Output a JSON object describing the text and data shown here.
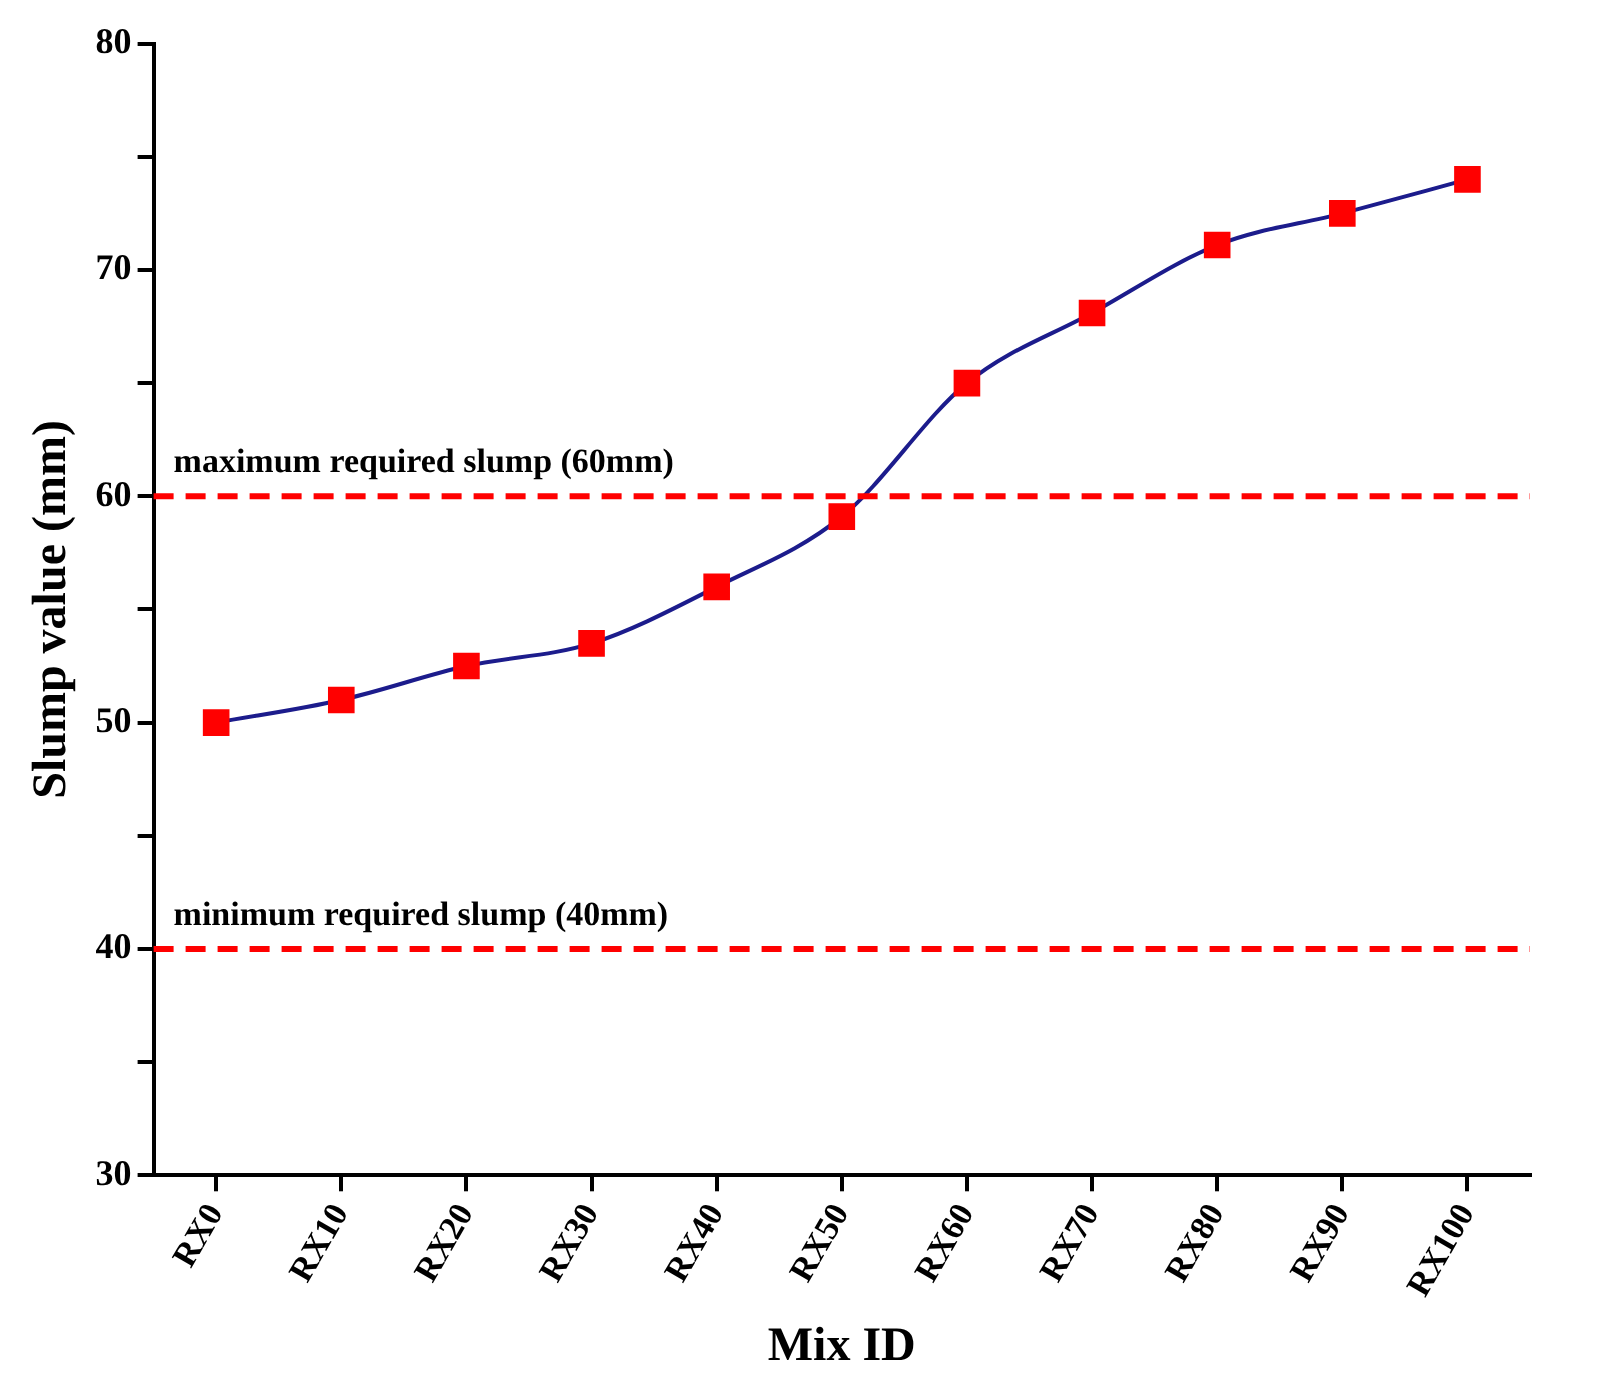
{
  "chart_data": {
    "type": "line",
    "xlabel": "Mix ID",
    "ylabel": "Slump value (mm)",
    "categories": [
      "RX0",
      "RX10",
      "RX20",
      "RX30",
      "RX40",
      "RX50",
      "RX60",
      "RX70",
      "RX80",
      "RX90",
      "RX100"
    ],
    "series": [
      {
        "color": "#1c1c8c",
        "colors": [
          "#ff0000",
          "#ff0000",
          "#ff0000",
          "#ff0000",
          "#ff0000",
          "#ff0000",
          "#ff0000",
          "#ff0000",
          "#ff0000",
          "#ff0000",
          "#ff0000"
        ],
        "values": [
          50.0,
          51.0,
          52.5,
          53.5,
          56.0,
          59.1,
          65.0,
          68.1,
          71.1,
          72.5,
          74.0
        ]
      }
    ],
    "marker": "square",
    "ylim": [
      30,
      80
    ],
    "yticks": [
      30,
      {
        "value": 35,
        "label": null
      },
      40,
      {
        "value": 45,
        "label": null
      },
      50,
      {
        "value": 55,
        "label": null
      },
      60,
      {
        "value": 65,
        "label": null
      },
      70,
      {
        "value": 75,
        "label": null
      },
      80
    ],
    "ref_lines": [
      {
        "axis": "y",
        "value": 60,
        "label": "maximum required slump (60mm)",
        "color": "#ff0000",
        "line_style": "dashed"
      },
      {
        "axis": "y",
        "value": 40,
        "label": "minimum required slump (40mm)",
        "color": "#ff0000",
        "line_style": "dashed"
      }
    ],
    "grid": false,
    "legend": false
  }
}
